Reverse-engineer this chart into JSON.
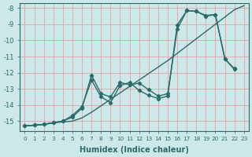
{
  "background_color": "#cce8e8",
  "grid_color": "#e8a8a8",
  "line_color": "#2a6b6b",
  "xlabel": "Humidex (Indice chaleur)",
  "xlim": [
    -0.5,
    23.5
  ],
  "ylim": [
    -15.6,
    -7.7
  ],
  "yticks": [
    -15,
    -14,
    -13,
    -12,
    -11,
    -10,
    -9,
    -8
  ],
  "ytick_labels": [
    "-15",
    "-14",
    "-13",
    "-12",
    "-11",
    "-10",
    "-9",
    "-8"
  ],
  "xticks": [
    0,
    1,
    2,
    3,
    4,
    5,
    6,
    7,
    8,
    9,
    10,
    11,
    12,
    13,
    14,
    15,
    16,
    17,
    18,
    19,
    20,
    21,
    22,
    23
  ],
  "line1_x": [
    0,
    1,
    2,
    3,
    4,
    5,
    6,
    7,
    8,
    9,
    10,
    11,
    12,
    13,
    14,
    15,
    16,
    17,
    18,
    19,
    20,
    21,
    22,
    23
  ],
  "line1_y": [
    -15.3,
    -15.25,
    -15.2,
    -15.1,
    -15.05,
    -15.0,
    -14.8,
    -14.45,
    -14.05,
    -13.65,
    -13.25,
    -12.85,
    -12.45,
    -12.05,
    -11.65,
    -11.25,
    -10.8,
    -10.35,
    -9.9,
    -9.45,
    -9.0,
    -8.55,
    -8.1,
    -7.85
  ],
  "line2_x": [
    0,
    1,
    2,
    3,
    4,
    5,
    6,
    7,
    8,
    9,
    10,
    11,
    12,
    13,
    14,
    15,
    16,
    17,
    18,
    19,
    20,
    21,
    22
  ],
  "line2_y": [
    -15.3,
    -15.25,
    -15.2,
    -15.1,
    -15.0,
    -14.75,
    -14.2,
    -12.15,
    -13.3,
    -13.5,
    -12.6,
    -12.75,
    -12.65,
    -13.05,
    -13.45,
    -13.3,
    -9.3,
    -8.15,
    -8.2,
    -8.5,
    -8.4,
    -11.15,
    -11.75
  ],
  "line3_x": [
    0,
    1,
    2,
    3,
    4,
    5,
    6,
    7,
    8,
    9,
    10,
    11,
    12,
    13,
    14,
    15,
    16,
    17,
    18,
    19,
    20,
    21,
    22
  ],
  "line3_y": [
    -15.3,
    -15.25,
    -15.2,
    -15.1,
    -15.0,
    -14.65,
    -14.1,
    -12.45,
    -13.5,
    -13.85,
    -12.8,
    -12.6,
    -13.1,
    -13.4,
    -13.6,
    -13.45,
    -9.05,
    -8.15,
    -8.2,
    -8.45,
    -8.4,
    -11.15,
    -11.8
  ]
}
